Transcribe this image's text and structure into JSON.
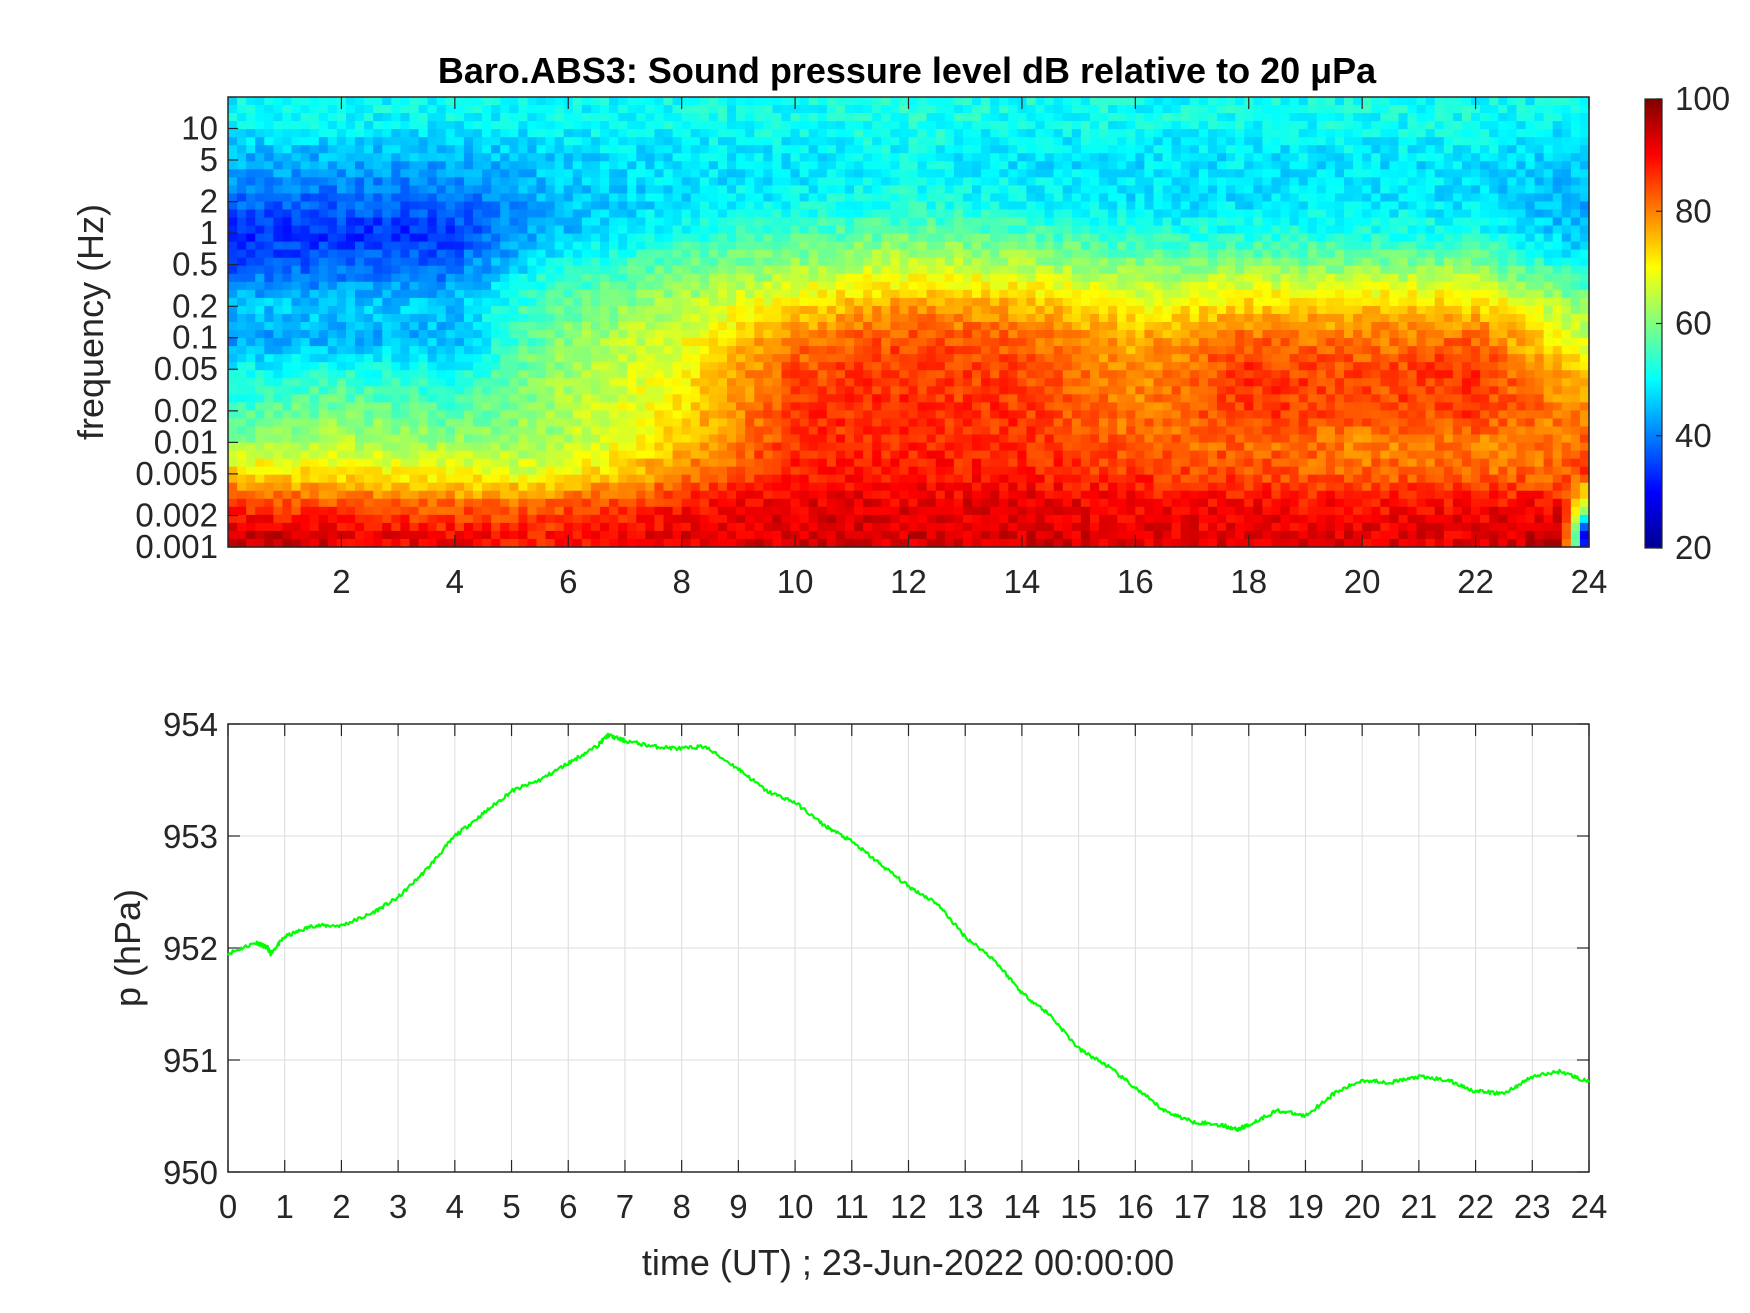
{
  "chart_data": [
    {
      "type": "heatmap",
      "title": "Baro.ABS3: Sound pressure level dB relative to 20 μPa",
      "xlabel": "",
      "ylabel": "frequency (Hz)",
      "xlim": [
        0,
        24
      ],
      "x_ticks": [
        2,
        4,
        6,
        8,
        10,
        12,
        14,
        16,
        18,
        20,
        22,
        24
      ],
      "y_scale": "log",
      "ylim": [
        0.001,
        20
      ],
      "y_ticks": [
        0.001,
        0.002,
        0.005,
        0.01,
        0.02,
        0.05,
        0.1,
        0.2,
        0.5,
        1,
        2,
        5,
        10
      ],
      "y_tick_labels": [
        "0.001",
        "0.002",
        "0.005",
        "0.01",
        "0.02",
        "0.05",
        "0.1",
        "0.2",
        "0.5",
        "1",
        "2",
        "5",
        "10"
      ],
      "colormap": "jet",
      "colorbar": {
        "min": 20,
        "max": 100,
        "ticks": [
          20,
          40,
          60,
          80,
          100
        ]
      },
      "description_rows_hz": [
        0.0013,
        0.0025,
        0.005,
        0.01,
        0.02,
        0.05,
        0.1,
        0.2,
        0.5,
        1,
        2,
        5,
        12
      ],
      "time_hours": [
        0,
        2,
        4,
        5.5,
        8,
        10,
        12,
        14,
        16,
        18,
        20,
        22,
        23.5,
        24
      ],
      "level_db": [
        [
          95,
          92,
          90,
          88,
          92,
          93,
          93,
          93,
          92,
          92,
          92,
          92,
          95,
          20
        ],
        [
          86,
          84,
          82,
          82,
          88,
          92,
          92,
          92,
          90,
          90,
          89,
          90,
          90,
          60
        ],
        [
          74,
          72,
          70,
          68,
          80,
          88,
          88,
          88,
          86,
          84,
          82,
          82,
          82,
          86
        ],
        [
          60,
          64,
          62,
          62,
          74,
          86,
          88,
          86,
          82,
          82,
          80,
          80,
          80,
          84
        ],
        [
          55,
          60,
          56,
          62,
          72,
          86,
          87,
          86,
          80,
          86,
          84,
          86,
          80,
          80
        ],
        [
          50,
          52,
          50,
          60,
          70,
          84,
          86,
          84,
          78,
          86,
          84,
          86,
          76,
          72
        ],
        [
          42,
          44,
          44,
          58,
          68,
          80,
          84,
          82,
          76,
          82,
          80,
          82,
          70,
          66
        ],
        [
          46,
          46,
          46,
          56,
          64,
          72,
          78,
          76,
          70,
          74,
          74,
          74,
          64,
          60
        ],
        [
          36,
          38,
          38,
          50,
          58,
          62,
          66,
          64,
          60,
          60,
          60,
          60,
          52,
          50
        ],
        [
          33,
          33,
          34,
          44,
          52,
          55,
          58,
          56,
          52,
          52,
          52,
          52,
          46,
          44
        ],
        [
          38,
          38,
          38,
          44,
          48,
          50,
          52,
          50,
          48,
          48,
          48,
          48,
          44,
          42
        ],
        [
          44,
          44,
          44,
          46,
          48,
          48,
          50,
          48,
          48,
          48,
          48,
          48,
          46,
          46
        ],
        [
          50,
          50,
          50,
          50,
          51,
          51,
          52,
          51,
          51,
          51,
          51,
          51,
          50,
          50
        ]
      ]
    },
    {
      "type": "line",
      "title": "",
      "xlabel": "time (UT) ; 23-Jun-2022 00:00:00",
      "ylabel": "p (hPa)",
      "xlim": [
        0,
        24
      ],
      "ylim": [
        950,
        954
      ],
      "x_ticks": [
        0,
        1,
        2,
        3,
        4,
        5,
        6,
        7,
        8,
        9,
        10,
        11,
        12,
        13,
        14,
        15,
        16,
        17,
        18,
        19,
        20,
        21,
        22,
        23,
        24
      ],
      "y_ticks": [
        950,
        951,
        952,
        953,
        954
      ],
      "grid": true,
      "series": [
        {
          "color": "#00ff00",
          "x": [
            0,
            0.5,
            0.7,
            0.75,
            1.0,
            1.5,
            2.0,
            2.5,
            3.0,
            3.5,
            4.0,
            4.5,
            5.0,
            5.5,
            6.0,
            6.5,
            6.7,
            7.0,
            7.5,
            8.0,
            8.4,
            9.0,
            9.5,
            10.0,
            10.5,
            11.0,
            11.5,
            12.0,
            12.5,
            13.0,
            13.5,
            14.0,
            14.5,
            15.0,
            15.5,
            16.0,
            16.5,
            17.0,
            17.5,
            17.8,
            18.0,
            18.5,
            19.0,
            19.5,
            20.0,
            20.5,
            21.0,
            21.5,
            22.0,
            22.5,
            23.0,
            23.5,
            24.0
          ],
          "y": [
            951.95,
            952.05,
            952.0,
            951.95,
            952.1,
            952.2,
            952.2,
            952.3,
            952.45,
            952.7,
            953.0,
            953.2,
            953.4,
            953.5,
            953.65,
            953.8,
            953.9,
            953.85,
            953.8,
            953.78,
            953.8,
            953.6,
            953.4,
            953.3,
            953.1,
            952.95,
            952.75,
            952.55,
            952.4,
            952.1,
            951.9,
            951.6,
            951.4,
            951.1,
            950.95,
            950.75,
            950.55,
            950.45,
            950.42,
            950.38,
            950.42,
            950.55,
            950.5,
            950.7,
            950.82,
            950.8,
            950.85,
            950.82,
            950.72,
            950.7,
            950.85,
            950.9,
            950.8
          ]
        }
      ]
    }
  ]
}
